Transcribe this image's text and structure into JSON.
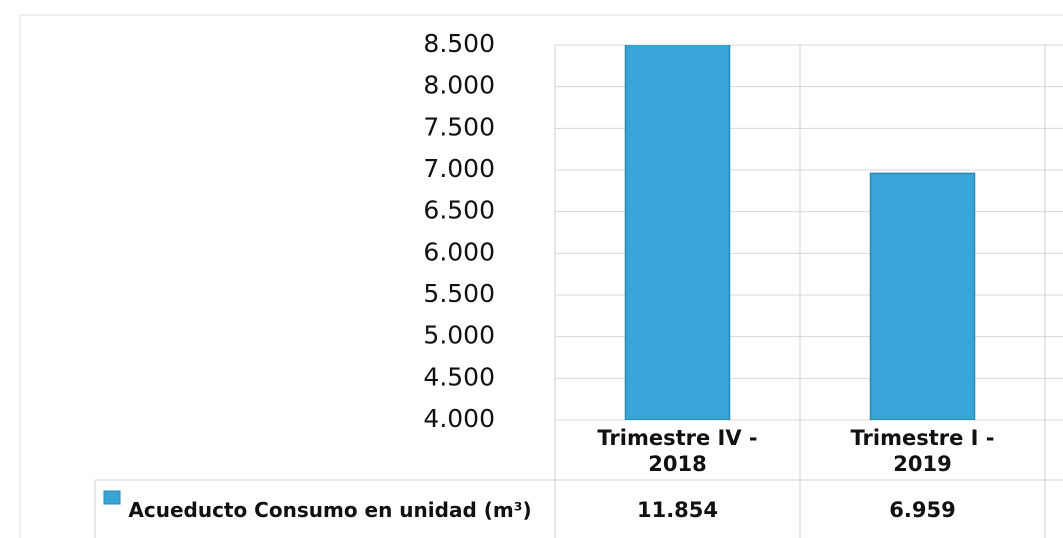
{
  "chart_data": {
    "type": "bar",
    "categories": [
      "Trimestre IV - 2018",
      "Trimestre I - 2019"
    ],
    "series": [
      {
        "name": "Acueducto Consumo en unidad (m³)",
        "color": "#38a5d8",
        "values": [
          11854,
          6959
        ],
        "value_labels": [
          "11.854",
          "6.959"
        ]
      }
    ],
    "ylim": [
      4000,
      8500
    ],
    "yticks": [
      {
        "value": 4000,
        "label": "4.000"
      },
      {
        "value": 4500,
        "label": "4.500"
      },
      {
        "value": 5000,
        "label": "5.000"
      },
      {
        "value": 5500,
        "label": "5.500"
      },
      {
        "value": 6000,
        "label": "6.000"
      },
      {
        "value": 6500,
        "label": "6.500"
      },
      {
        "value": 7000,
        "label": "7.000"
      },
      {
        "value": 7500,
        "label": "7.500"
      },
      {
        "value": 8000,
        "label": "8.000"
      },
      {
        "value": 8500,
        "label": "8.500"
      }
    ],
    "grid": true
  }
}
